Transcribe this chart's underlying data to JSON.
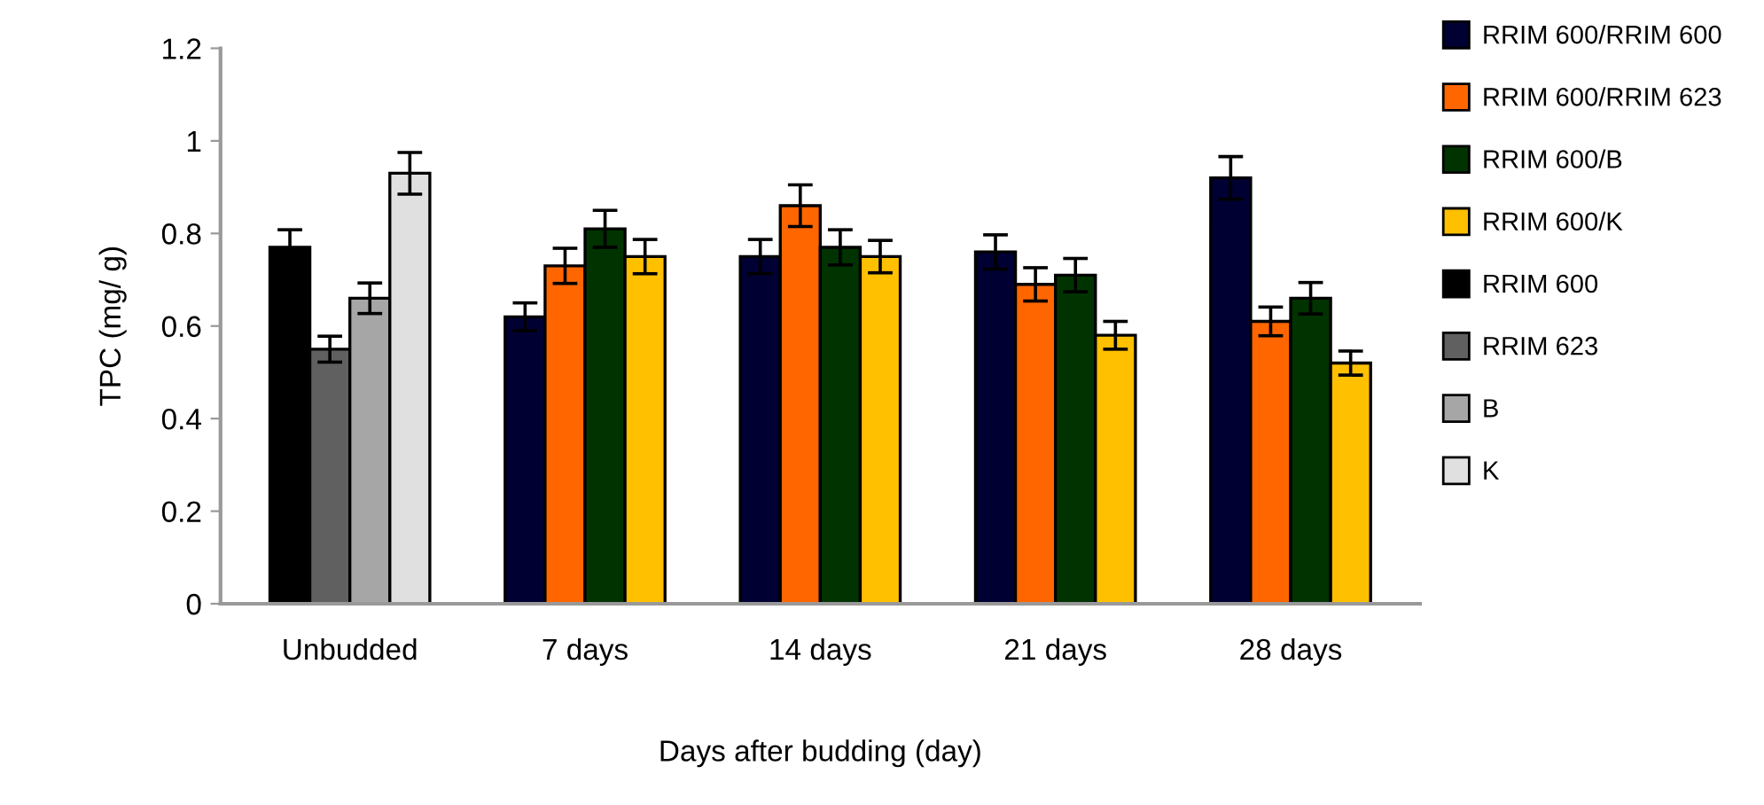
{
  "chart_data": {
    "type": "bar",
    "xlabel": "Days after budding (day)",
    "ylabel": "TPC (mg/ g)",
    "categories": [
      "Unbudded",
      "7 days",
      "14 days",
      "21 days",
      "28 days"
    ],
    "series": [
      {
        "name": "RRIM 600/RRIM 600",
        "color": "#000033",
        "values": [
          null,
          0.62,
          0.75,
          0.76,
          0.92
        ],
        "errors": [
          null,
          0.03,
          0.037,
          0.037,
          0.046
        ]
      },
      {
        "name": "RRIM 600/RRIM 623",
        "color": "#ff6600",
        "values": [
          null,
          0.73,
          0.86,
          0.69,
          0.61
        ],
        "errors": [
          null,
          0.038,
          0.045,
          0.036,
          0.031
        ]
      },
      {
        "name": "RRIM 600/B",
        "color": "#003300",
        "values": [
          null,
          0.81,
          0.77,
          0.71,
          0.66
        ],
        "errors": [
          null,
          0.04,
          0.038,
          0.036,
          0.034
        ]
      },
      {
        "name": "RRIM 600/K",
        "color": "#ffc000",
        "values": [
          null,
          0.75,
          0.75,
          0.58,
          0.52
        ],
        "errors": [
          null,
          0.037,
          0.035,
          0.03,
          0.026
        ]
      },
      {
        "name": "RRIM 600",
        "color": "#000000",
        "values": [
          0.77,
          null,
          null,
          null,
          null
        ],
        "errors": [
          0.038,
          null,
          null,
          null,
          null
        ]
      },
      {
        "name": "RRIM 623",
        "color": "#606060",
        "values": [
          0.55,
          null,
          null,
          null,
          null
        ],
        "errors": [
          0.028,
          null,
          null,
          null,
          null
        ]
      },
      {
        "name": "B",
        "color": "#a6a6a6",
        "values": [
          0.66,
          null,
          null,
          null,
          null
        ],
        "errors": [
          0.033,
          null,
          null,
          null,
          null
        ]
      },
      {
        "name": "K",
        "color": "#e0e0e0",
        "values": [
          0.93,
          null,
          null,
          null,
          null
        ],
        "errors": [
          0.045,
          null,
          null,
          null,
          null
        ]
      }
    ],
    "ylim": [
      0,
      1.2
    ],
    "yticks": [
      0,
      0.2,
      0.4,
      0.6,
      0.8,
      1,
      1.2
    ],
    "legend": "top right"
  }
}
